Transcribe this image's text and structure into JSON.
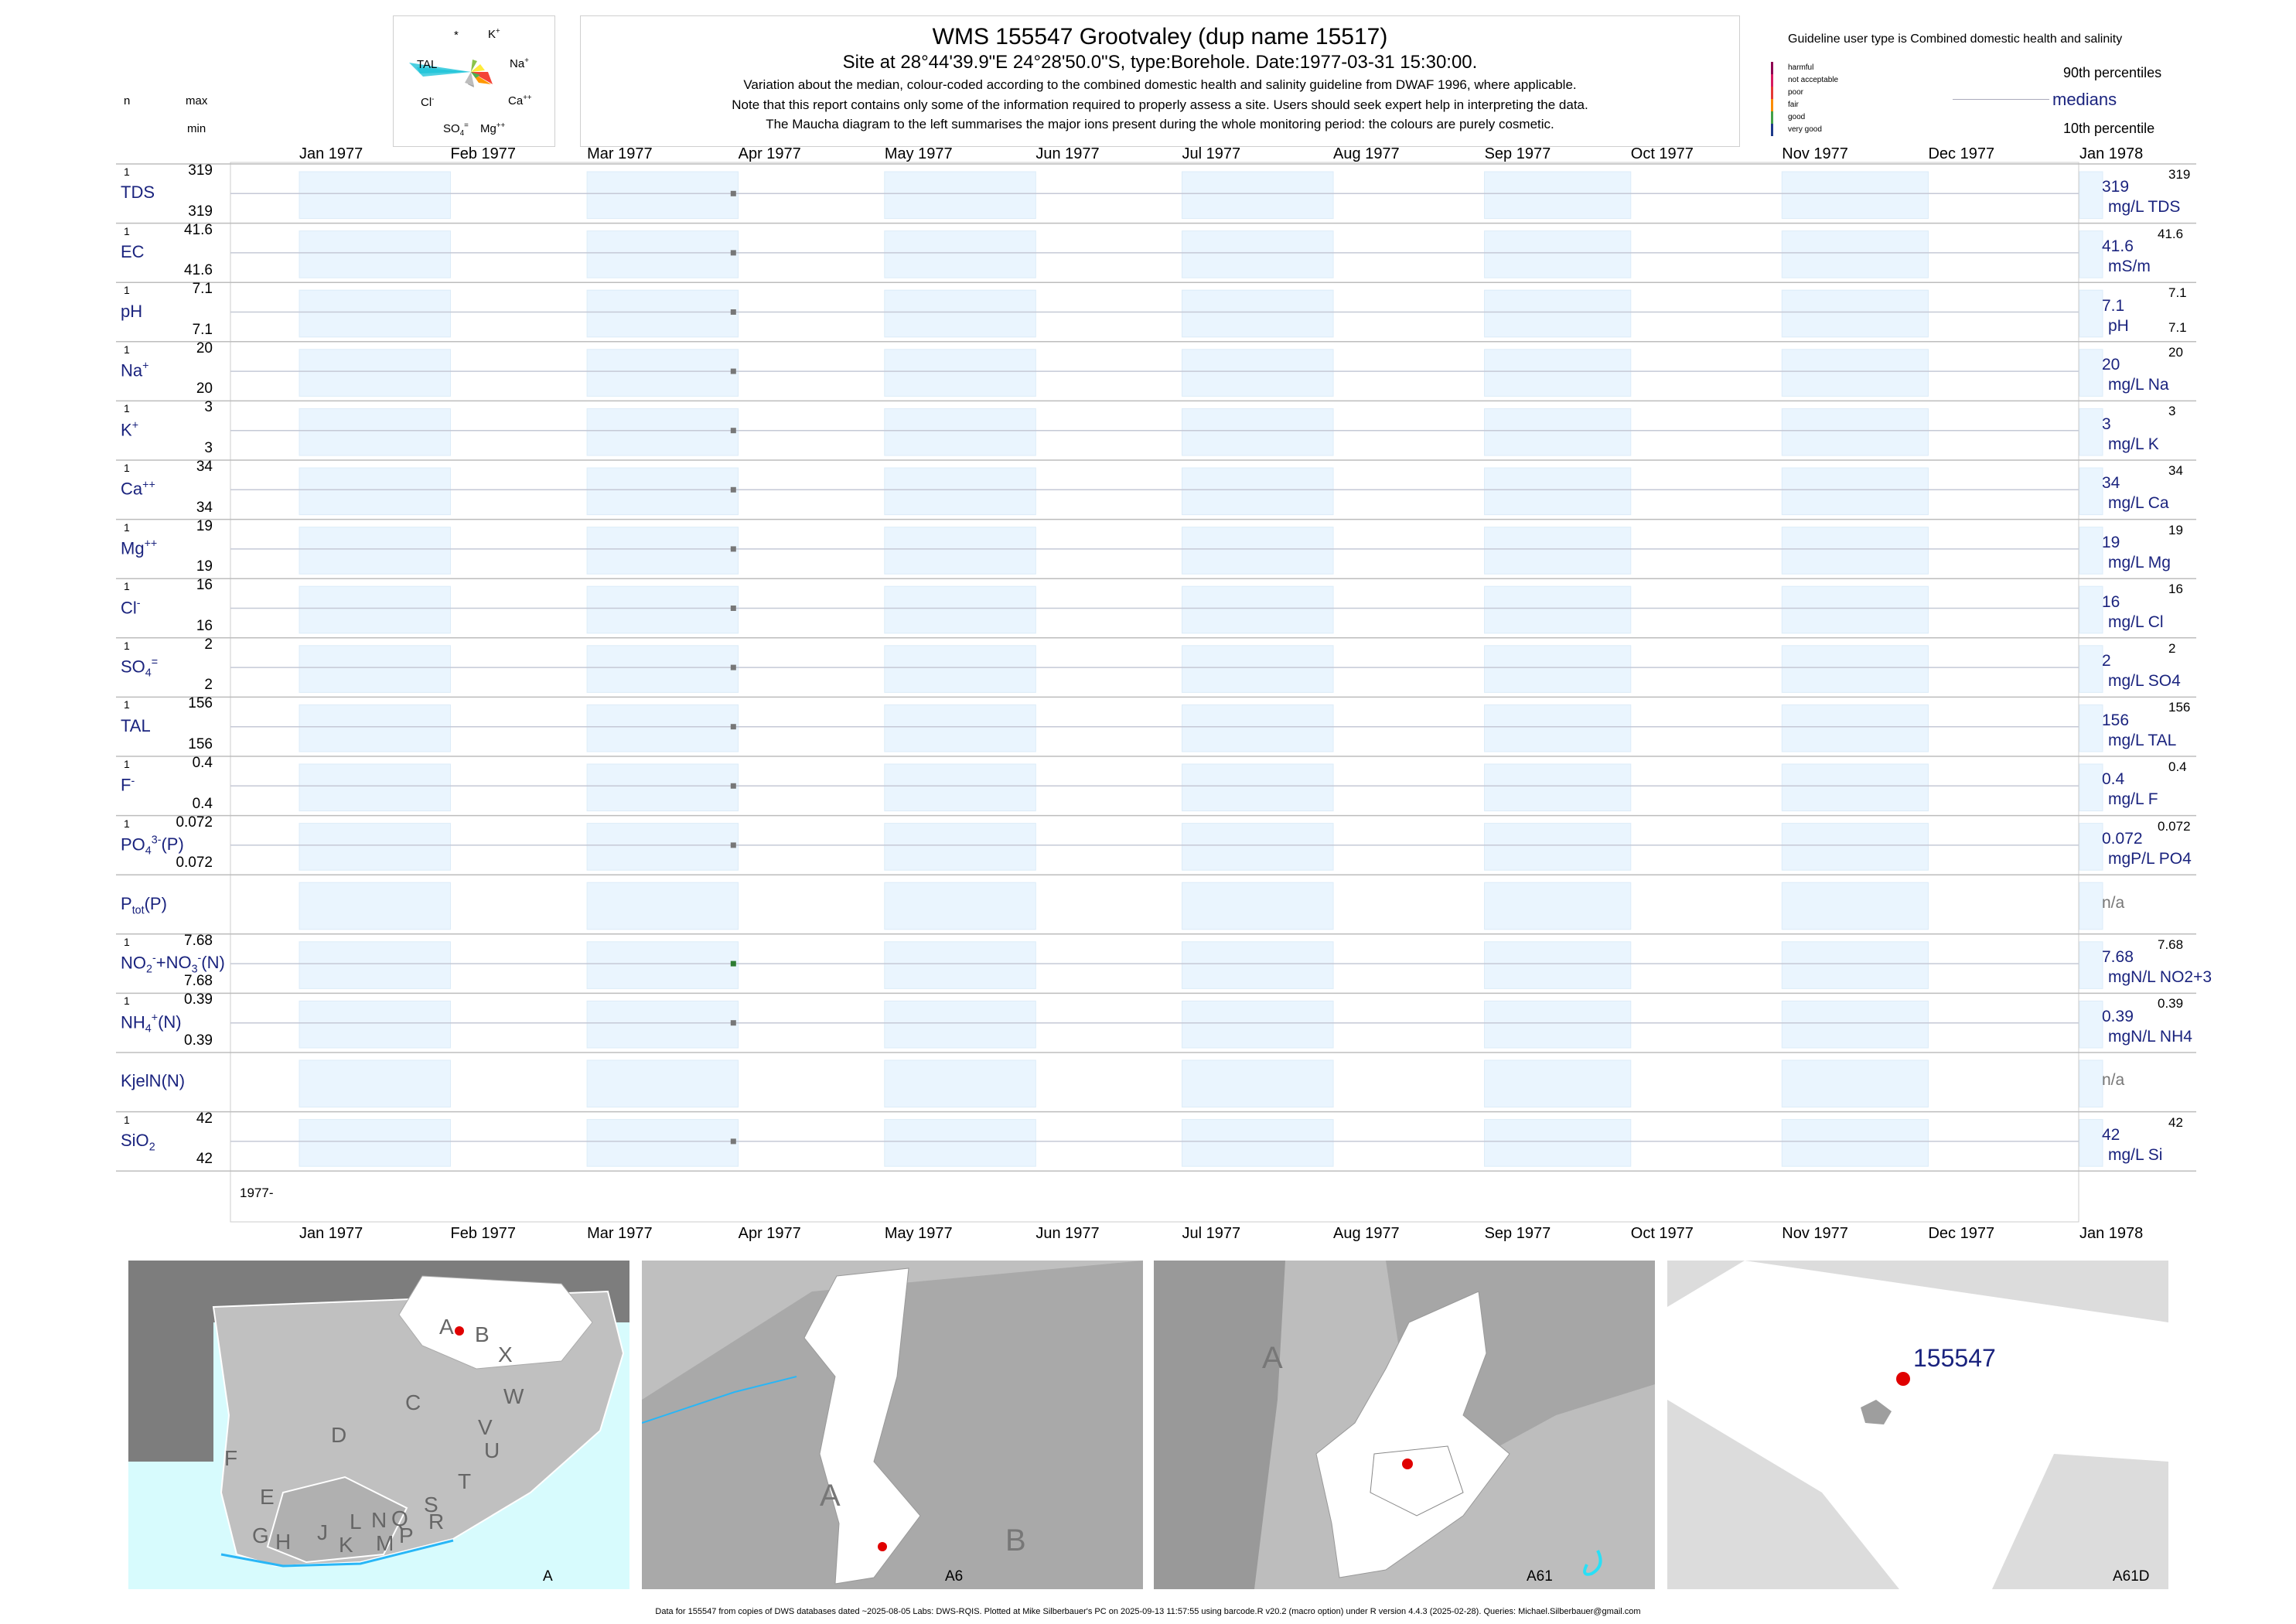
{
  "title": {
    "line1": "WMS 155547  Grootvaley (dup name 15517)",
    "line2": "Site at 28°44'39.9\"E 24°28'50.0\"S, type:Borehole. Date:1977-03-31 15:30:00.",
    "line3": "Variation about the median,  colour-coded according to the combined domestic health and salinity guideline from DWAF 1996, where applicable.",
    "line4": "Note that this report contains only some of the information required to properly assess a site. Users should seek expert help in interpreting the data.",
    "line5": "The Maucha diagram to the left summarises the major ions present during the whole monitoring period: the colours are purely cosmetic."
  },
  "maucha": {
    "labels": {
      "star": "*",
      "k": "K",
      "tal": "TAL",
      "na": "Na",
      "cl": "Cl",
      "ca": "Ca",
      "so4": "SO",
      "mg": "Mg"
    }
  },
  "legend": {
    "guideline_title": "Guideline user type is Combined domestic health and salinity",
    "classes": [
      {
        "label": "harmful",
        "color": "#8e0152"
      },
      {
        "label": "not acceptable",
        "color": "#d81b60"
      },
      {
        "label": "poor",
        "color": "#e53935"
      },
      {
        "label": "fair",
        "color": "#fb8c00"
      },
      {
        "label": "good",
        "color": "#43a047"
      },
      {
        "label": "very good",
        "color": "#1e3a8a"
      }
    ],
    "p90": "90th percentiles",
    "medians": "medians",
    "p10": "10th percentile"
  },
  "header": {
    "n": "n",
    "max": "max",
    "min": "min"
  },
  "chart_data": {
    "type": "scatter",
    "x_axis": {
      "start": "1977-01-01",
      "end": "1978-01-01",
      "tick_labels": [
        "Jan 1977",
        "Feb 1977",
        "Mar 1977",
        "Apr 1977",
        "May 1977",
        "Jun 1977",
        "Jul 1977",
        "Aug 1977",
        "Sep 1977",
        "Oct 1977",
        "Nov 1977",
        "Dec 1977",
        "Jan 1978"
      ],
      "year_label": "1977-"
    },
    "sample_date": "1977-03-31",
    "series": [
      {
        "name": "TDS",
        "n": "1",
        "max": "319",
        "min": "319",
        "median": "319",
        "unit": "mg/L TDS",
        "rmax": "319",
        "value": 319
      },
      {
        "name": "EC",
        "n": "1",
        "max": "41.6",
        "min": "41.6",
        "median": "41.6",
        "unit": "mS/m",
        "rmax": "41.6",
        "value": 41.6
      },
      {
        "name": "pH",
        "n": "1",
        "max": "7.1",
        "min": "7.1",
        "median": "7.1",
        "unit": "pH",
        "rmax": "7.1",
        "rmin": "7.1",
        "value": 7.1
      },
      {
        "name": "Na",
        "n": "1",
        "max": "20",
        "min": "20",
        "median": "20",
        "unit": "mg/L Na",
        "rmax": "20",
        "value": 20
      },
      {
        "name": "K",
        "n": "1",
        "max": "3",
        "min": "3",
        "median": "3",
        "unit": "mg/L K",
        "rmax": "3",
        "value": 3
      },
      {
        "name": "Ca",
        "n": "1",
        "max": "34",
        "min": "34",
        "median": "34",
        "unit": "mg/L Ca",
        "rmax": "34",
        "value": 34
      },
      {
        "name": "Mg",
        "n": "1",
        "max": "19",
        "min": "19",
        "median": "19",
        "unit": "mg/L Mg",
        "rmax": "19",
        "value": 19
      },
      {
        "name": "Cl",
        "n": "1",
        "max": "16",
        "min": "16",
        "median": "16",
        "unit": "mg/L Cl",
        "rmax": "16",
        "value": 16
      },
      {
        "name": "SO",
        "n": "1",
        "max": "2",
        "min": "2",
        "median": "2",
        "unit": "mg/L SO4",
        "rmax": "2",
        "value": 2
      },
      {
        "name": "TAL",
        "n": "1",
        "max": "156",
        "min": "156",
        "median": "156",
        "unit": "mg/L TAL",
        "rmax": "156",
        "value": 156
      },
      {
        "name": "F",
        "n": "1",
        "max": "0.4",
        "min": "0.4",
        "median": "0.4",
        "unit": "mg/L F",
        "rmax": "0.4",
        "value": 0.4
      },
      {
        "name": "PO",
        "n": "1",
        "max": "0.072",
        "min": "0.072",
        "median": "0.072",
        "unit": "mgP/L PO4",
        "rmax": "0.072",
        "value": 0.072
      },
      {
        "name": "P",
        "median": "n/a"
      },
      {
        "name": "NO",
        "n": "1",
        "max": "7.68",
        "min": "7.68",
        "median": "7.68",
        "unit": "mgN/L NO2+3",
        "rmax": "7.68",
        "value": 7.68
      },
      {
        "name": "NH",
        "n": "1",
        "max": "0.39",
        "min": "0.39",
        "median": "0.39",
        "unit": "mgN/L NH4",
        "rmax": "0.39",
        "value": 0.39
      },
      {
        "name": "KjelN(N)",
        "median": "n/a"
      },
      {
        "name": "SiO",
        "n": "1",
        "max": "42",
        "min": "42",
        "median": "42",
        "unit": "mg/L Si",
        "rmax": "42",
        "value": 42
      }
    ]
  },
  "maps": {
    "panel1": {
      "caption": "A",
      "regions": [
        "A",
        "B",
        "X",
        "C",
        "W",
        "D",
        "V",
        "U",
        "F",
        "T",
        "E",
        "S",
        "L",
        "N",
        "Q",
        "R",
        "G",
        "H",
        "J",
        "K",
        "M",
        "P"
      ]
    },
    "panel2": {
      "caption": "A6",
      "regions": [
        "A",
        "B"
      ]
    },
    "panel3": {
      "caption": "A61",
      "regions": [
        "A"
      ]
    },
    "panel4": {
      "caption": "A61D",
      "site": "155547"
    }
  },
  "footer": "Data for 155547 from copies of DWS databases dated ~2025-08-05 Labs: DWS-RQIS. Plotted at Mike Silberbauer's PC on 2025-09-13 11:57:55 using barcode.R v20.2 (macro option) under R version 4.4.3 (2025-02-28). Queries: Michael.Silberbauer@gmail.com"
}
